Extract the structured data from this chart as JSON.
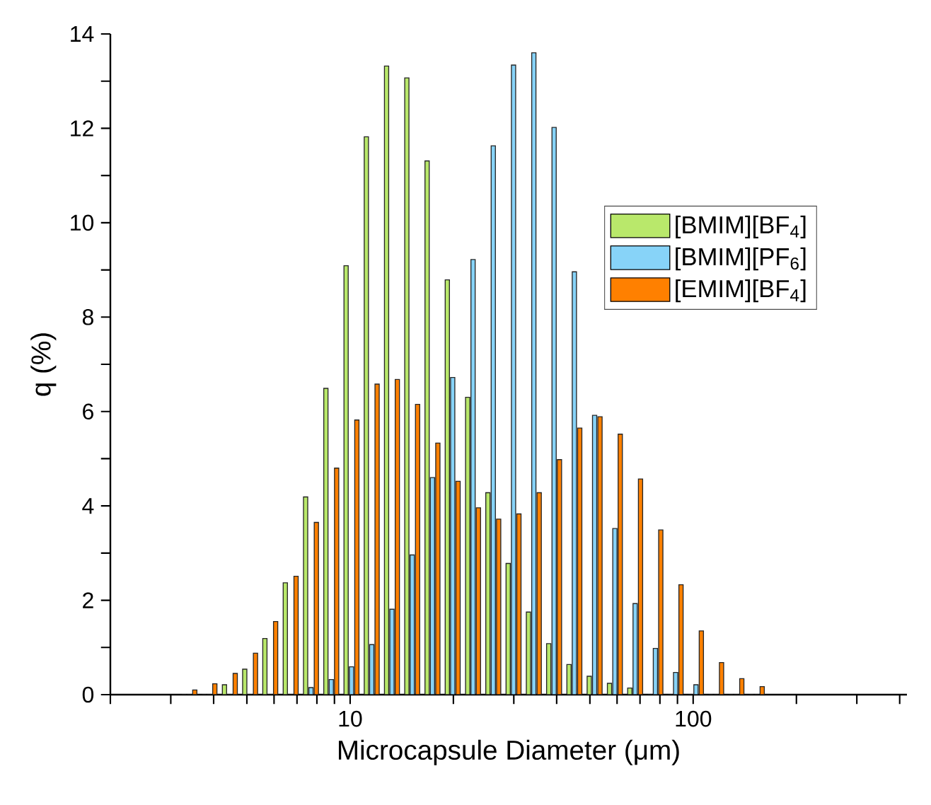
{
  "chart_data": {
    "type": "bar",
    "xlabel": "Microcapsule Diameter (μm)",
    "ylabel": "q (%)",
    "x": [
      3.4,
      3.89,
      4.46,
      5.11,
      5.85,
      6.71,
      7.69,
      8.81,
      10.09,
      11.56,
      13.24,
      15.17,
      17.38,
      19.91,
      22.82,
      26.14,
      29.95,
      34.32,
      39.32,
      45.05,
      51.61,
      59.13,
      67.75,
      77.62,
      88.9,
      101.9,
      116.7,
      133.7,
      153.3
    ],
    "series": [
      {
        "name": "[BMIM][BF$_{4}$]",
        "color": "#b9e86b",
        "values": [
          0,
          0,
          0.21,
          0.54,
          1.19,
          2.37,
          4.19,
          6.49,
          9.09,
          11.82,
          13.32,
          13.07,
          11.31,
          8.79,
          6.3,
          4.28,
          2.78,
          1.75,
          1.08,
          0.64,
          0.39,
          0.24,
          0.14,
          0,
          0,
          0,
          0,
          0,
          0
        ]
      },
      {
        "name": "[BMIM][PF$_{6}$]",
        "color": "#87d3f8",
        "values": [
          0,
          0,
          0,
          0,
          0,
          0,
          0.15,
          0.32,
          0.59,
          1.06,
          1.81,
          2.96,
          4.6,
          6.72,
          9.22,
          11.63,
          13.34,
          13.6,
          12.02,
          8.96,
          5.92,
          3.52,
          1.93,
          0.98,
          0.47,
          0.21,
          0,
          0,
          0
        ]
      },
      {
        "name": "[EMIM][BF$_{4}$]",
        "color": "#ff8000",
        "values": [
          0.1,
          0.23,
          0.45,
          0.88,
          1.55,
          2.51,
          3.65,
          4.8,
          5.82,
          6.58,
          6.68,
          6.15,
          5.33,
          4.52,
          3.96,
          3.72,
          3.83,
          4.28,
          4.98,
          5.65,
          5.89,
          5.52,
          4.57,
          3.49,
          2.33,
          1.35,
          0.68,
          0.34,
          0.17
        ]
      }
    ],
    "log": "x",
    "xlim": [
      2,
      420
    ],
    "ylim": [
      0,
      14
    ],
    "xticks": [
      {
        "value": 2,
        "label": null
      },
      {
        "value": 3,
        "label": null
      },
      {
        "value": 4,
        "label": null
      },
      {
        "value": 5,
        "label": null
      },
      {
        "value": 6,
        "label": null
      },
      {
        "value": 7,
        "label": null
      },
      {
        "value": 8,
        "label": null
      },
      {
        "value": 9,
        "label": null
      },
      10,
      {
        "value": 20,
        "label": null
      },
      {
        "value": 30,
        "label": null
      },
      {
        "value": 40,
        "label": null
      },
      {
        "value": 50,
        "label": null
      },
      {
        "value": 60,
        "label": null
      },
      {
        "value": 70,
        "label": null
      },
      {
        "value": 80,
        "label": null
      },
      {
        "value": 90,
        "label": null
      },
      100,
      {
        "value": 200,
        "label": null
      },
      {
        "value": 300,
        "label": null
      },
      {
        "value": 400,
        "label": null
      }
    ],
    "yticks": [
      0,
      {
        "value": 1,
        "label": null
      },
      2,
      {
        "value": 3,
        "label": null
      },
      4,
      {
        "value": 5,
        "label": null
      },
      6,
      {
        "value": 7,
        "label": null
      },
      8,
      {
        "value": 9,
        "label": null
      },
      10,
      {
        "value": 11,
        "label": null
      },
      12,
      {
        "value": 13,
        "label": null
      },
      14
    ],
    "legend": "right",
    "grid": false
  }
}
